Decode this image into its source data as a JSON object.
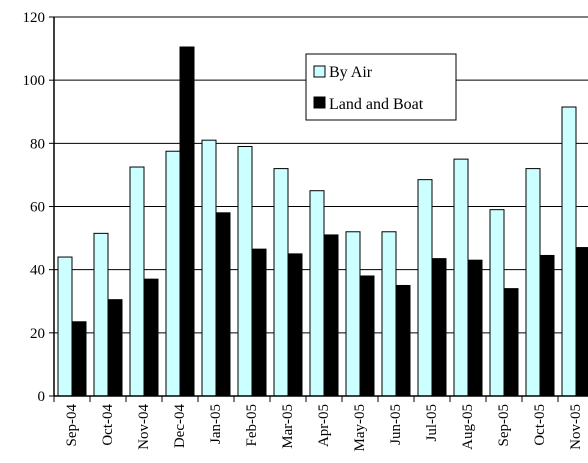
{
  "chart_data": {
    "type": "bar",
    "title": "",
    "xlabel": "",
    "ylabel": "",
    "ylim": [
      0,
      120
    ],
    "yticks": [
      0,
      20,
      40,
      60,
      80,
      100,
      120
    ],
    "grid": true,
    "legend_position": "top-center",
    "categories": [
      "Sep-04",
      "Oct-04",
      "Nov-04",
      "Dec-04",
      "Jan-05",
      "Feb-05",
      "Mar-05",
      "Apr-05",
      "May-05",
      "Jun-05",
      "Jul-05",
      "Aug-05",
      "Sep-05",
      "Oct-05",
      "Nov-05"
    ],
    "series": [
      {
        "name": "By Air",
        "color": "#ccffff",
        "values": [
          44,
          51.5,
          72.5,
          77.5,
          81,
          79,
          72,
          65,
          52,
          52,
          68.5,
          75,
          59,
          72,
          91.5
        ]
      },
      {
        "name": "Land and Boat",
        "color": "#000000",
        "values": [
          23.5,
          30.5,
          37,
          110.5,
          58,
          46.5,
          45,
          51,
          38,
          35,
          43.5,
          43,
          34,
          44.5,
          47
        ]
      }
    ]
  }
}
